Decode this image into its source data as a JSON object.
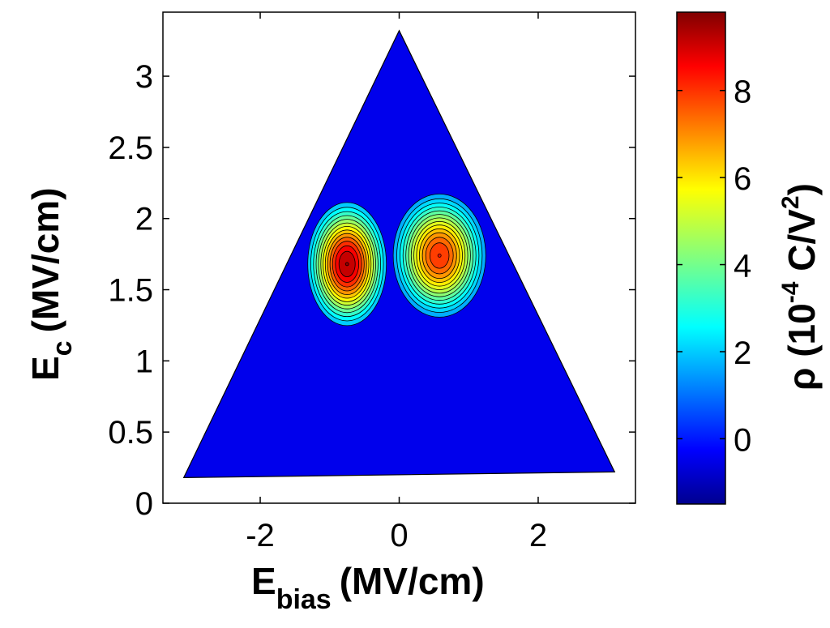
{
  "chart_data": {
    "type": "heatmap",
    "subtype": "filled contour (FORC distribution) with colorbar",
    "xlabel": {
      "main": "E",
      "sub": "bias",
      "unit": "(MV/cm)"
    },
    "ylabel": {
      "main": "E",
      "sub": "c",
      "unit": "(MV/cm)"
    },
    "xlim": [
      -3.4,
      3.4
    ],
    "ylim": [
      0,
      3.45
    ],
    "xticks": [
      -2,
      0,
      2
    ],
    "xtick_labels": [
      "-2",
      "0",
      "2"
    ],
    "yticks": [
      0,
      0.5,
      1,
      1.5,
      2,
      2.5,
      3
    ],
    "ytick_labels": [
      "0",
      "0.5",
      "1",
      "1.5",
      "2",
      "2.5",
      "3"
    ],
    "region_vertices": [
      [
        -3.1,
        0.18
      ],
      [
        0.0,
        3.32
      ],
      [
        3.1,
        0.22
      ]
    ],
    "peaks": [
      {
        "x": -0.75,
        "y": 1.68,
        "value": 9.6,
        "sx": 0.34,
        "sy": 0.26
      },
      {
        "x": 0.58,
        "y": 1.74,
        "value": 8.2,
        "sx": 0.4,
        "sy": 0.26
      }
    ],
    "colorbar": {
      "label": {
        "main": "ρ (10",
        "exp": "-4",
        "unit": " C/V",
        "exp2": "2",
        "close": ")"
      },
      "range": [
        -1.5,
        9.8
      ],
      "ticks": [
        0,
        2,
        4,
        6,
        8
      ],
      "tick_labels": [
        "0",
        "2",
        "4",
        "6",
        "8"
      ],
      "colormap": "jet"
    },
    "background_value": -0.3,
    "grid": false
  }
}
